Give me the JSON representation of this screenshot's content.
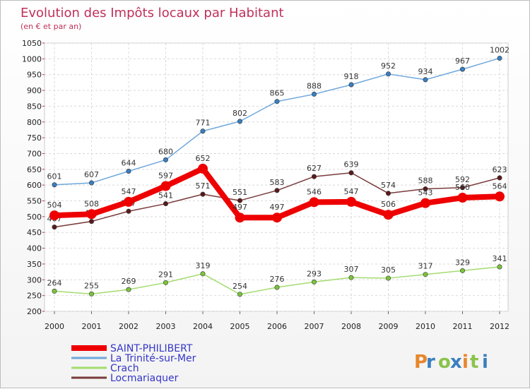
{
  "chart_data": {
    "type": "line",
    "title": "Evolution des Impôts locaux par Habitant",
    "subtitle": "(en € et par an)",
    "xlabel": "",
    "ylabel": "",
    "x": [
      "2000",
      "2001",
      "2002",
      "2003",
      "2004",
      "2005",
      "2006",
      "2007",
      "2008",
      "2009",
      "2010",
      "2011",
      "2012"
    ],
    "ylim": [
      200,
      1050
    ],
    "yticks": [
      200,
      250,
      300,
      350,
      400,
      450,
      500,
      550,
      600,
      650,
      700,
      750,
      800,
      850,
      900,
      950,
      1000,
      1050
    ],
    "grid": true,
    "legend": "bottom-left",
    "series": [
      {
        "name": "La Trinité-sur-Mer",
        "color": "#6fa8dc",
        "marker": "#3a7fc0",
        "values": [
          601,
          607,
          644,
          680,
          771,
          802,
          865,
          888,
          918,
          952,
          934,
          967,
          1002
        ]
      },
      {
        "name": "Crach",
        "color": "#a3dc6f",
        "marker": "#7cc43c",
        "values": [
          264,
          255,
          269,
          291,
          319,
          254,
          276,
          293,
          307,
          305,
          317,
          329,
          341
        ]
      },
      {
        "name": "Locmariaquer",
        "color": "#7a3b3b",
        "marker": "#5a1a1a",
        "values": [
          467,
          485,
          517,
          541,
          571,
          551,
          583,
          627,
          639,
          574,
          588,
          592,
          623
        ]
      },
      {
        "name": "SAINT-PHILIBERT",
        "color": "#ee0000",
        "marker": "#ee0000",
        "values": [
          504,
          508,
          547,
          597,
          652,
          497,
          497,
          546,
          547,
          506,
          543,
          560,
          564
        ]
      }
    ]
  },
  "legend_items": [
    {
      "name": "SAINT-PHILIBERT",
      "color": "#ee0000"
    },
    {
      "name": "La Trinité-sur-Mer",
      "color": "#6fa8dc"
    },
    {
      "name": "Crach",
      "color": "#a3dc6f"
    },
    {
      "name": "Locmariaquer",
      "color": "#7a3b3b"
    }
  ],
  "logo": "Proxiti"
}
